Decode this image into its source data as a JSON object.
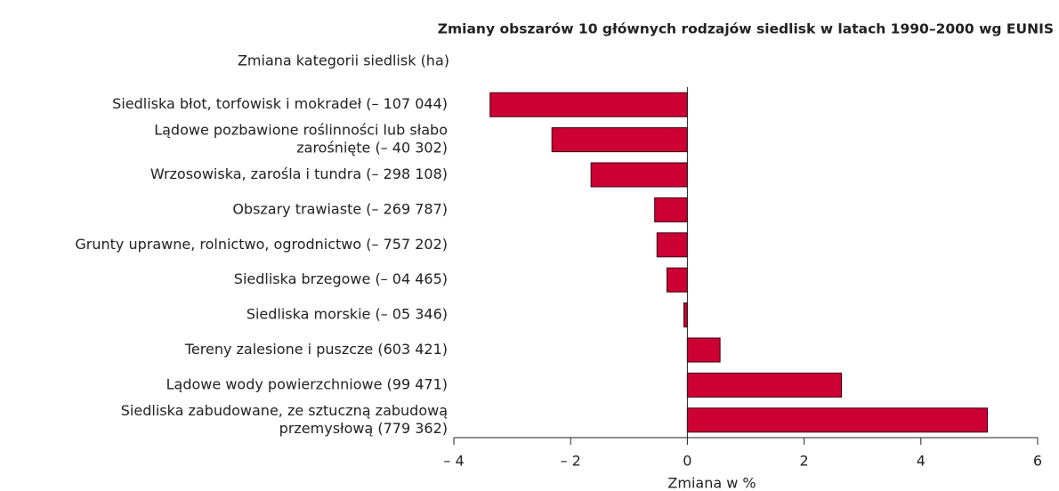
{
  "chart_data": {
    "type": "bar",
    "orientation": "horizontal",
    "title": "Zmiany obszarów 10 głównych rodzajów siedlisk w latach 1990–2000 wg EUNIS",
    "subtitle": "Zmiana kategorii siedlisk (ha)",
    "xlabel": "Zmiana w %",
    "categories": [
      [
        "Siedliska błot, torfowisk i mokradeł (– 107 044)"
      ],
      [
        "Lądowe pozbawione roślinności lub słabo",
        "zarośnięte (– 40 302)"
      ],
      [
        "Wrzosowiska, zarośla i tundra (– 298 108)"
      ],
      [
        "Obszary trawiaste (– 269 787)"
      ],
      [
        "Grunty uprawne, rolnictwo, ogrodnictwo (– 757 202)"
      ],
      [
        "Siedliska brzegowe (– 04 465)"
      ],
      [
        "Siedliska morskie (– 05 346)"
      ],
      [
        "Tereny zalesione i puszcze (603 421)"
      ],
      [
        "Lądowe wody powierzchniowe (99 471)"
      ],
      [
        "Siedliska zabudowane, ze sztuczną zabudową",
        "przemysłową (779 362)"
      ]
    ],
    "values": [
      -3.38,
      -2.32,
      -1.65,
      -0.56,
      -0.52,
      -0.35,
      -0.06,
      0.56,
      2.64,
      5.14
    ],
    "color": "#cc0033",
    "xlim": [
      -4,
      6
    ],
    "xticks": [
      {
        "value": -4,
        "label": "– 4"
      },
      {
        "value": -2,
        "label": "– 2"
      },
      0,
      2,
      4,
      6
    ]
  }
}
